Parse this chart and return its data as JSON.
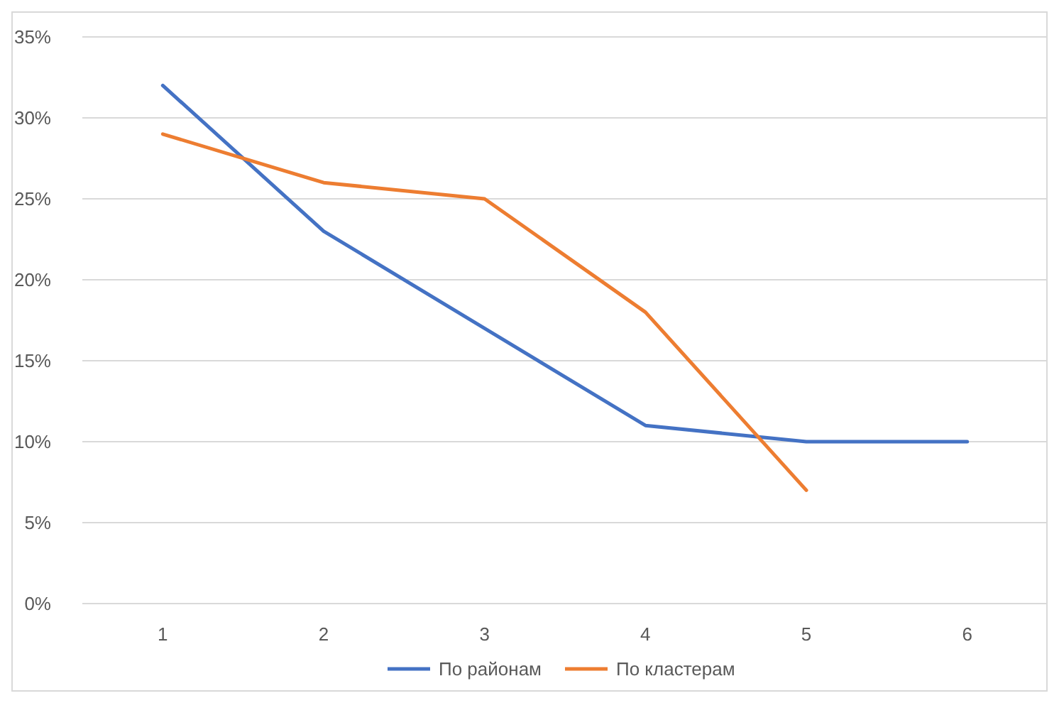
{
  "chart_data": {
    "type": "line",
    "categories": [
      "1",
      "2",
      "3",
      "4",
      "5",
      "6"
    ],
    "series": [
      {
        "name": "По районам",
        "color": "#4472c4",
        "values": [
          32,
          23,
          17,
          11,
          10,
          10
        ]
      },
      {
        "name": "По кластерам",
        "color": "#ed7d31",
        "values": [
          29,
          26,
          25,
          18,
          7,
          null
        ]
      }
    ],
    "ylim": [
      0,
      35
    ],
    "yticks": [
      {
        "value": 0,
        "label": "0%"
      },
      {
        "value": 5,
        "label": "5%"
      },
      {
        "value": 10,
        "label": "10%"
      },
      {
        "value": 15,
        "label": "15%"
      },
      {
        "value": 20,
        "label": "20%"
      },
      {
        "value": 25,
        "label": "25%"
      },
      {
        "value": 30,
        "label": "30%"
      },
      {
        "value": 35,
        "label": "35%"
      }
    ],
    "grid": "y",
    "legend": "bottom",
    "marker": "none",
    "line_style": "solid"
  }
}
